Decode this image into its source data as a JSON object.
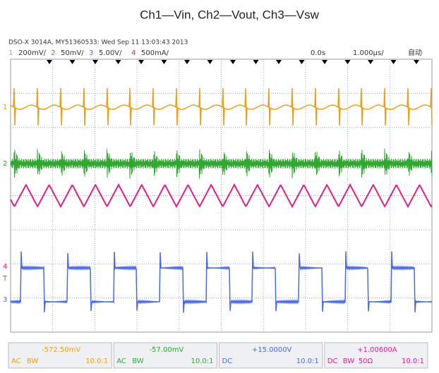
{
  "subtitle": "Ch1—Vin, Ch2—Vout, Ch3—Vsw",
  "header": "DSO-X 3014A, MY51360533: Wed Sep 11 13:03:43 2013",
  "channels": [
    {
      "number": "1",
      "scale": "200mV/"
    },
    {
      "number": "2",
      "scale": "50mV/"
    },
    {
      "number": "3",
      "scale": "5.00V/"
    },
    {
      "number": "4",
      "scale": "500mA/"
    }
  ],
  "timebase": {
    "delay": "0.0s",
    "scale": "1.000µs/",
    "mode": "自动"
  },
  "markers": [
    "1",
    "2",
    "4",
    "T",
    "3"
  ],
  "readouts": [
    {
      "offset": "-572.50mV",
      "tags": [
        "AC",
        "BW"
      ],
      "probe": "10.0:1"
    },
    {
      "offset": "-57.00mV",
      "tags": [
        "AC",
        "BW"
      ],
      "probe": "10.0:1"
    },
    {
      "offset": "+15.0000V",
      "tags": [
        "DC"
      ],
      "probe": "10.0:1"
    },
    {
      "offset": "+1.00600A",
      "tags": [
        "DC",
        "BW",
        "50Ω"
      ],
      "probe": "10.0:1"
    }
  ]
}
